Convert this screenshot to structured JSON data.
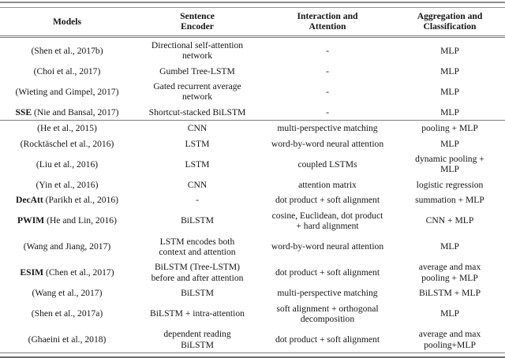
{
  "table": {
    "headers": [
      "Models",
      "Sentence\nEncoder",
      "Interaction and\nAttention",
      "Aggregation and\nClassification"
    ],
    "group_a": [
      {
        "model_bold": "",
        "model": "(Shen et al., 2017b)",
        "encoder": "Directional self-attention\nnetwork",
        "interaction": "-",
        "aggregation": "MLP"
      },
      {
        "model_bold": "",
        "model": "(Choi et al., 2017)",
        "encoder": "Gumbel Tree-LSTM",
        "interaction": "-",
        "aggregation": "MLP"
      },
      {
        "model_bold": "",
        "model": "(Wieting and Gimpel, 2017)",
        "encoder": "Gated recurrent average\nnetwork",
        "interaction": "-",
        "aggregation": "MLP"
      },
      {
        "model_bold": "SSE",
        "model": "(Nie and Bansal, 2017)",
        "encoder": "Shortcut-stacked BiLSTM",
        "interaction": "-",
        "aggregation": "MLP"
      }
    ],
    "group_b": [
      {
        "model_bold": "",
        "model": "(He et al., 2015)",
        "encoder": "CNN",
        "interaction": "multi-perspective matching",
        "aggregation": "pooling + MLP"
      },
      {
        "model_bold": "",
        "model": "(Rocktäschel et al., 2016)",
        "encoder": "LSTM",
        "interaction": "word-by-word neural attention",
        "aggregation": "MLP"
      },
      {
        "model_bold": "",
        "model": "(Liu et al., 2016)",
        "encoder": "LSTM",
        "interaction": "coupled LSTMs",
        "aggregation": "dynamic pooling +\nMLP"
      },
      {
        "model_bold": "",
        "model": "(Yin et al., 2016)",
        "encoder": "CNN",
        "interaction": "attention matrix",
        "aggregation": "logistic regression"
      },
      {
        "model_bold": "DecAtt",
        "model": "(Parikh et al., 2016)",
        "encoder": "-",
        "interaction": "dot product + soft alignment",
        "aggregation": "summation + MLP"
      },
      {
        "model_bold": "PWIM",
        "model": "(He and Lin, 2016)",
        "encoder": "BiLSTM",
        "interaction": "cosine, Euclidean, dot product\n+ hard alignment",
        "aggregation": "CNN + MLP"
      },
      {
        "model_bold": "",
        "model": "(Wang and Jiang, 2017)",
        "encoder": "LSTM encodes both\ncontext and attention",
        "interaction": "word-by-word neural attention",
        "aggregation": "MLP"
      },
      {
        "model_bold": "ESIM",
        "model": "(Chen et al., 2017)",
        "encoder": "BiLSTM (Tree-LSTM)\nbefore and after attention",
        "interaction": "dot product + soft alignment",
        "aggregation": "average and max\npooling + MLP"
      },
      {
        "model_bold": "",
        "model": "(Wang et al., 2017)",
        "encoder": "BiLSTM",
        "interaction": "multi-perspective matching",
        "aggregation": "BiLSTM + MLP"
      },
      {
        "model_bold": "",
        "model": "(Shen et al., 2017a)",
        "encoder": "BiLSTM + intra-attention",
        "interaction": "soft alignment + orthogonal\ndecomposition",
        "aggregation": "MLP"
      },
      {
        "model_bold": "",
        "model": "(Ghaeini et al., 2018)",
        "encoder": "dependent reading\nBiLSTM",
        "interaction": "dot product + soft alignment",
        "aggregation": "average and max\npooling+MLP"
      }
    ]
  }
}
